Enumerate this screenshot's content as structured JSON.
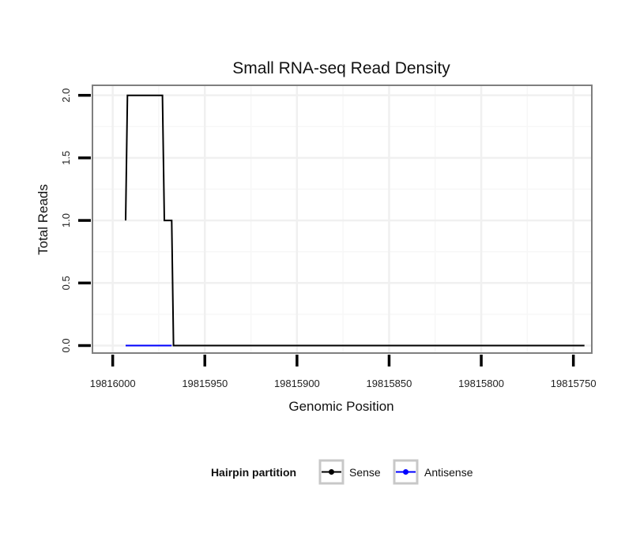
{
  "chart_data": {
    "type": "line",
    "title": "Small RNA-seq Read Density",
    "xlabel": "Genomic Position",
    "ylabel": "Total Reads",
    "x_reversed": true,
    "xlim": [
      19816011,
      19815740
    ],
    "ylim": [
      -0.06,
      2.08
    ],
    "x_ticks": [
      19816000,
      19815950,
      19815900,
      19815850,
      19815800,
      19815750
    ],
    "x_tick_labels": [
      "19816000",
      "19815950",
      "19815900",
      "19815850",
      "19815800",
      "19815750"
    ],
    "y_ticks": [
      0.0,
      0.5,
      1.0,
      1.5,
      2.0
    ],
    "y_tick_labels": [
      "0.0",
      "0.5",
      "1.0",
      "1.5",
      "2.0"
    ],
    "grid": true,
    "legend": {
      "title": "Hairpin partition",
      "position": "bottom",
      "entries": [
        "Sense",
        "Antisense"
      ]
    },
    "series": [
      {
        "name": "Sense",
        "color": "#000000",
        "x": [
          19815993,
          19815992,
          19815973,
          19815972,
          19815968,
          19815967,
          19815744
        ],
        "y": [
          1,
          2,
          2,
          1,
          1,
          0,
          0
        ]
      },
      {
        "name": "Antisense",
        "color": "#0000ff",
        "x": [
          19815993,
          19815968
        ],
        "y": [
          0,
          0
        ]
      }
    ]
  }
}
